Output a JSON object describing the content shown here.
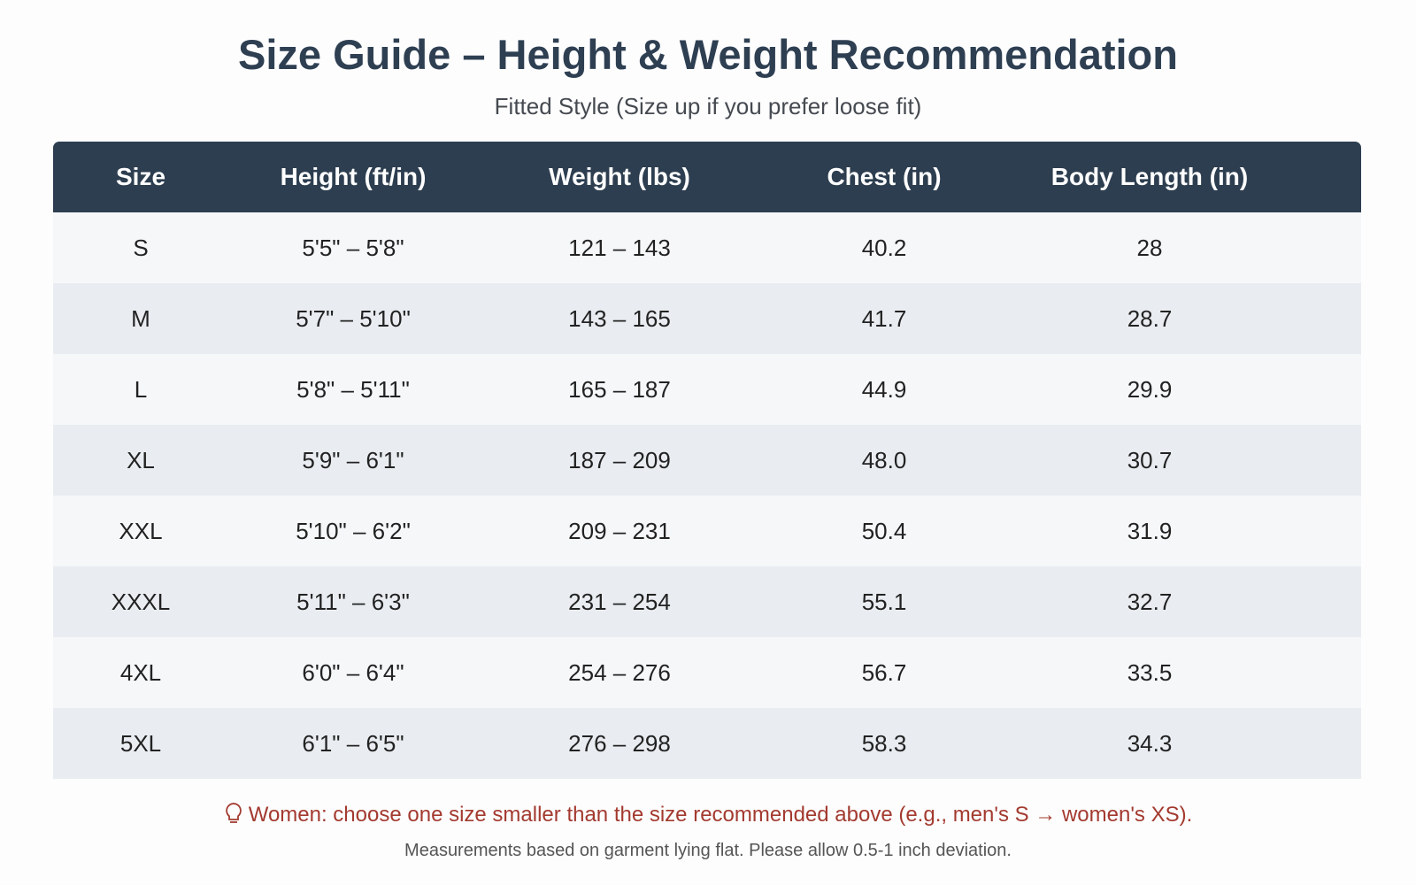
{
  "header": {
    "title": "Size Guide – Height & Weight Recommendation",
    "subtitle": "Fitted Style (Size up if you prefer loose fit)"
  },
  "table": {
    "columns": [
      "Size",
      "Height (ft/in)",
      "Weight (lbs)",
      "Chest (in)",
      "Body Length (in)"
    ],
    "rows": [
      [
        "S",
        "5'5\" – 5'8\"",
        "121 – 143",
        "40.2",
        "28"
      ],
      [
        "M",
        "5'7\" – 5'10\"",
        "143 – 165",
        "41.7",
        "28.7"
      ],
      [
        "L",
        "5'8\" – 5'11\"",
        "165 – 187",
        "44.9",
        "29.9"
      ],
      [
        "XL",
        "5'9\" – 6'1\"",
        "187 – 209",
        "48.0",
        "30.7"
      ],
      [
        "XXL",
        "5'10\" – 6'2\"",
        "209 – 231",
        "50.4",
        "31.9"
      ],
      [
        "XXXL",
        "5'11\" – 6'3\"",
        "231 – 254",
        "55.1",
        "32.7"
      ],
      [
        "4XL",
        "6'0\" – 6'4\"",
        "254 – 276",
        "56.7",
        "33.5"
      ],
      [
        "5XL",
        "6'1\" – 6'5\"",
        "276 – 298",
        "58.3",
        "34.3"
      ]
    ]
  },
  "footer": {
    "note": "Women: choose one size smaller than the size recommended above (e.g., men's S → women's XS).",
    "disclaimer": "Measurements based on garment lying flat. Please allow 0.5-1 inch deviation."
  }
}
